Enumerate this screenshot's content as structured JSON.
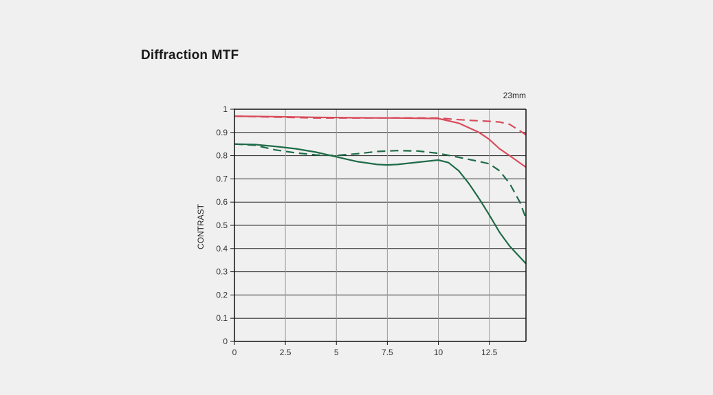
{
  "page": {
    "title": "Diffraction MTF"
  },
  "chart_data": {
    "type": "line",
    "annotation": "23mm",
    "xlabel": "",
    "ylabel": "CONTRAST",
    "xlim": [
      0,
      14.3
    ],
    "ylim": [
      0,
      1
    ],
    "x_ticks": [
      0,
      2.5,
      5,
      7.5,
      10,
      12.5
    ],
    "x_tick_labels": [
      "0",
      "2.5",
      "5",
      "7.5",
      "10",
      "12.5"
    ],
    "y_ticks": [
      0,
      0.1,
      0.2,
      0.3,
      0.4,
      0.5,
      0.6,
      0.7,
      0.8,
      0.9,
      1
    ],
    "y_tick_labels": [
      "0",
      "0.1",
      "0.2",
      "0.3",
      "0.4",
      "0.5",
      "0.6",
      "0.7",
      "0.8",
      "0.9",
      "1"
    ],
    "grid": true,
    "colors": {
      "red": "#d94a5a",
      "green": "#1e6b47",
      "grid": "#222222"
    },
    "series": [
      {
        "color": "#d94a5a",
        "dash": "solid",
        "x": [
          0,
          2,
          4,
          6,
          8,
          10,
          11,
          12,
          12.5,
          13,
          13.5,
          14.3
        ],
        "y": [
          0.97,
          0.968,
          0.965,
          0.963,
          0.962,
          0.96,
          0.94,
          0.9,
          0.87,
          0.83,
          0.8,
          0.75
        ]
      },
      {
        "color": "#d94a5a",
        "dash": "dashed",
        "x": [
          0,
          2,
          4,
          6,
          8,
          10,
          11,
          12,
          12.5,
          13,
          13.5,
          14.3
        ],
        "y": [
          0.97,
          0.966,
          0.962,
          0.962,
          0.963,
          0.962,
          0.955,
          0.95,
          0.948,
          0.945,
          0.935,
          0.89
        ]
      },
      {
        "color": "#1e6b47",
        "dash": "solid",
        "x": [
          0,
          1,
          2,
          3,
          4,
          5,
          6,
          7,
          7.5,
          8,
          9,
          10,
          10.5,
          11,
          11.5,
          12,
          12.5,
          13,
          13.5,
          14.3
        ],
        "y": [
          0.85,
          0.848,
          0.84,
          0.83,
          0.815,
          0.795,
          0.775,
          0.762,
          0.76,
          0.762,
          0.772,
          0.781,
          0.77,
          0.735,
          0.68,
          0.615,
          0.545,
          0.47,
          0.41,
          0.335
        ]
      },
      {
        "color": "#1e6b47",
        "dash": "dashed",
        "x": [
          0,
          1,
          2,
          3,
          4,
          5,
          6,
          7,
          8,
          9,
          10,
          11,
          12,
          12.5,
          13,
          13.5,
          14,
          14.3
        ],
        "y": [
          0.85,
          0.845,
          0.825,
          0.812,
          0.803,
          0.801,
          0.808,
          0.818,
          0.822,
          0.82,
          0.81,
          0.793,
          0.775,
          0.765,
          0.735,
          0.68,
          0.6,
          0.53
        ]
      }
    ]
  }
}
